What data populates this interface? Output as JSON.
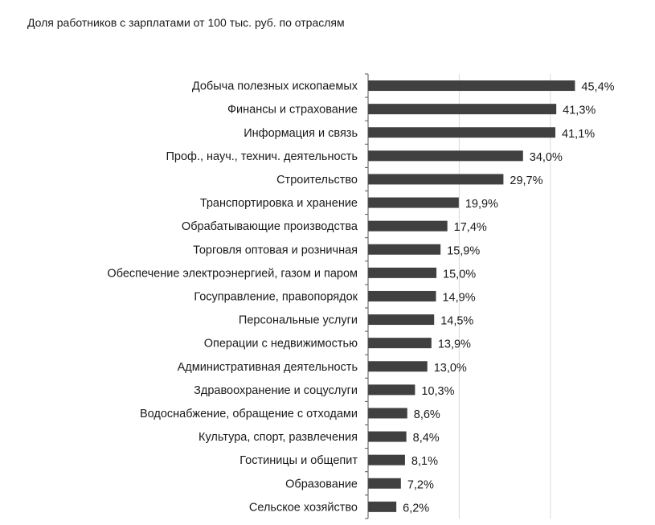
{
  "chart_data": {
    "type": "bar",
    "orientation": "horizontal",
    "title": "Доля работников с зарплатами от 100 тыс. руб. по отраслям",
    "categories": [
      "Добыча полезных ископаемых",
      "Финансы и страхование",
      "Информация и связь",
      "Проф., науч., технич. деятельность",
      "Строительство",
      "Транспортировка и хранение",
      "Обрабатывающие производства",
      "Торговля оптовая и розничная",
      "Обеспечение электроэнергией, газом и паром",
      "Госуправление, правопорядок",
      "Персональные услуги",
      "Операции с недвижимостью",
      "Административная деятельность",
      "Здравоохранение и соцуслуги",
      "Водоснабжение, обращение с отходами",
      "Культура, спорт, развлечения",
      "Гостиницы и общепит",
      "Образование",
      "Сельское хозяйство"
    ],
    "values": [
      45.4,
      41.3,
      41.1,
      34.0,
      29.7,
      19.9,
      17.4,
      15.9,
      15.0,
      14.9,
      14.5,
      13.9,
      13.0,
      10.3,
      8.6,
      8.4,
      8.1,
      7.2,
      6.2
    ],
    "value_labels": [
      "45,4%",
      "41,3%",
      "41,1%",
      "34,0%",
      "29,7%",
      "19,9%",
      "17,4%",
      "15,9%",
      "15,0%",
      "14,9%",
      "14,5%",
      "13,9%",
      "13,0%",
      "10,3%",
      "8,6%",
      "8,4%",
      "8,1%",
      "7,2%",
      "6,2%"
    ],
    "xlim": [
      0,
      50
    ],
    "gridlines_x": [
      20,
      40
    ],
    "bar_color": "#404040",
    "grid": true,
    "legend": "none"
  }
}
